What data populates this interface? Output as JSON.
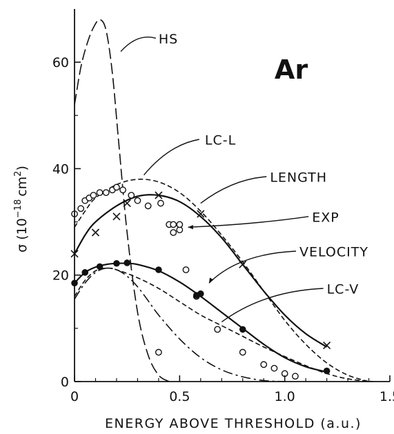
{
  "chart_data": {
    "type": "line",
    "title": "Ar",
    "xlabel": "ENERGY ABOVE THRESHOLD (a.u.)",
    "ylabel": "σ (10⁻¹⁸ cm²)",
    "ylabel_parts": {
      "prefix": "σ (10",
      "exp1": "−18",
      "mid": "cm",
      "exp2": "2",
      "suffix": ")"
    },
    "xlim": [
      0,
      1.5
    ],
    "ylim": [
      0,
      70
    ],
    "xticks": [
      0,
      0.5,
      1.0,
      1.5
    ],
    "xtick_labels": [
      "0",
      "0.5",
      "1.0",
      "1.5"
    ],
    "yticks": [
      0,
      20,
      40,
      60
    ],
    "ytick_labels": [
      "0",
      "20",
      "40",
      "60"
    ],
    "grid": false,
    "series": [
      {
        "name": "HS",
        "style": "longdash",
        "x": [
          0,
          0.03,
          0.06,
          0.09,
          0.12,
          0.15,
          0.18,
          0.21,
          0.25,
          0.3,
          0.35,
          0.4,
          0.45
        ],
        "y": [
          52,
          59,
          63.5,
          66.5,
          68,
          66,
          58,
          45,
          28,
          13,
          5,
          1.2,
          0
        ]
      },
      {
        "name": "LC-L",
        "style": "shortdash",
        "x": [
          0,
          0.05,
          0.1,
          0.2,
          0.3,
          0.4,
          0.5,
          0.6,
          0.7,
          0.8,
          0.9,
          1.0,
          1.1,
          1.2,
          1.3,
          1.4
        ],
        "y": [
          29,
          32,
          34.5,
          37,
          38,
          37.5,
          35.5,
          32,
          27.5,
          22.5,
          17,
          11.5,
          7,
          3.5,
          1.2,
          0
        ]
      },
      {
        "name": "LENGTH",
        "style": "solid",
        "x": [
          0,
          0.05,
          0.1,
          0.2,
          0.3,
          0.4,
          0.5,
          0.6,
          0.7,
          0.8,
          0.9,
          1.0,
          1.1,
          1.2
        ],
        "y": [
          24,
          27.5,
          30,
          33,
          34.8,
          35,
          33.8,
          31,
          27,
          22,
          17,
          12.5,
          9,
          6.5
        ]
      },
      {
        "name": "VELOCITY",
        "style": "solid",
        "x": [
          0,
          0.05,
          0.1,
          0.15,
          0.2,
          0.25,
          0.3,
          0.4,
          0.5,
          0.6,
          0.7,
          0.8,
          0.9,
          1.0,
          1.1,
          1.2
        ],
        "y": [
          18.5,
          20.5,
          21.5,
          22,
          22.2,
          22.2,
          22,
          20.8,
          18.7,
          16,
          13,
          10,
          7,
          4.5,
          2.8,
          1.8
        ]
      },
      {
        "name": "LC-V",
        "style": "shortdash",
        "x": [
          0,
          0.05,
          0.1,
          0.15,
          0.2,
          0.3,
          0.4,
          0.5,
          0.6,
          0.7,
          0.8,
          0.9,
          1.0,
          1.1,
          1.2,
          1.3,
          1.42
        ],
        "y": [
          16,
          19,
          20.8,
          21.3,
          21,
          19.5,
          17.5,
          15,
          12.5,
          10.5,
          8.5,
          6.5,
          4.7,
          3,
          1.5,
          0.5,
          0
        ]
      },
      {
        "name": "",
        "style": "dashdot",
        "x": [
          0,
          0.05,
          0.1,
          0.15,
          0.2,
          0.25,
          0.3,
          0.35,
          0.4,
          0.5,
          0.6,
          0.7,
          0.8,
          0.9,
          1.0
        ],
        "y": [
          15.5,
          18.5,
          20.5,
          21.3,
          21,
          19.8,
          17.8,
          15.2,
          12.5,
          8,
          4.5,
          2.2,
          0.9,
          0.2,
          0
        ]
      }
    ],
    "markers": {
      "cross": {
        "x": [
          0,
          0.1,
          0.2,
          0.25,
          0.4,
          0.6,
          0.8,
          1.2
        ],
        "y": [
          24,
          28,
          31,
          33.5,
          35,
          31.5,
          22,
          6.8
        ]
      },
      "filled_circle": {
        "x": [
          0,
          0.05,
          0.12,
          0.2,
          0.25,
          0.4,
          0.58,
          0.6,
          0.8,
          1.2
        ],
        "y": [
          18.5,
          20.5,
          21.6,
          22.2,
          22.3,
          21,
          16.2,
          16.5,
          9.8,
          2
        ]
      },
      "open_circle": {
        "x": [
          0,
          0.03,
          0.05,
          0.07,
          0.09,
          0.12,
          0.15,
          0.18,
          0.2,
          0.23,
          0.27,
          0.3,
          0.35,
          0.4,
          0.41,
          0.45,
          0.47,
          0.47,
          0.5,
          0.5,
          0.53,
          0.58,
          0.68,
          0.8,
          0.9,
          0.95,
          1.0,
          1.05
        ],
        "y": [
          31.5,
          32.5,
          34,
          34.5,
          35,
          35.5,
          35.5,
          36,
          36.5,
          36,
          35,
          34,
          33,
          5.5,
          33.5,
          29.5,
          28,
          29.5,
          28.5,
          29.5,
          21,
          16,
          9.8,
          5.5,
          3.2,
          2.5,
          1.5,
          1
        ]
      }
    },
    "annotations": [
      {
        "text": "HS",
        "x": 0.4,
        "y": 63.5,
        "arrow": false
      },
      {
        "text": "LC-L",
        "x": 0.62,
        "y": 44.5,
        "arrow": false
      },
      {
        "text": "LENGTH",
        "x": 0.93,
        "y": 37.5,
        "arrow": false
      },
      {
        "text": "EXP",
        "x": 1.13,
        "y": 30,
        "arrow": true
      },
      {
        "text": "VELOCITY",
        "x": 1.07,
        "y": 23.5,
        "arrow": true
      },
      {
        "text": "LC-V",
        "x": 1.2,
        "y": 16.5,
        "arrow": false
      }
    ]
  }
}
